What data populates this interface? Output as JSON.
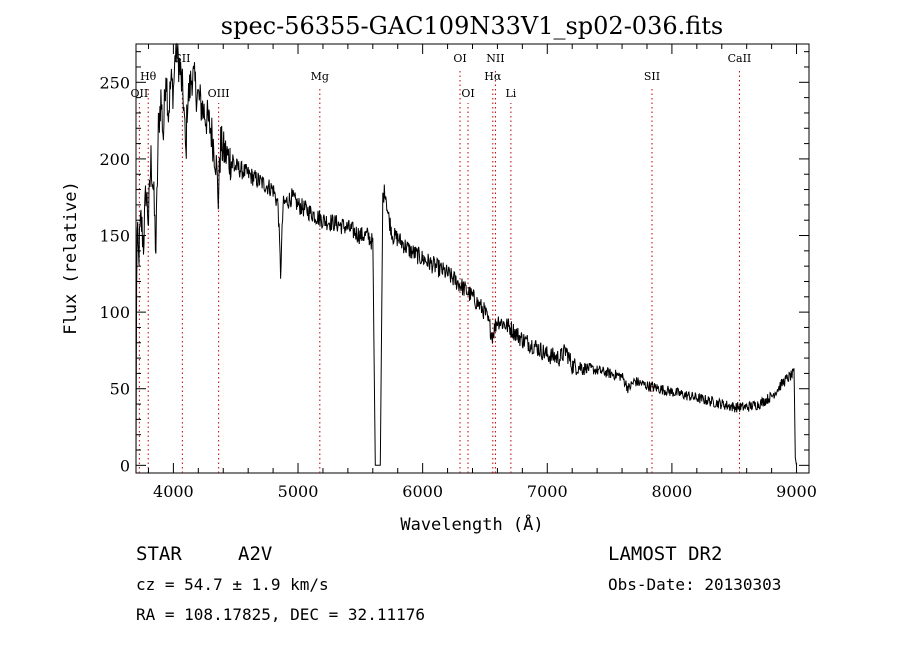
{
  "chart_data": {
    "type": "line",
    "title": "spec-56355-GAC109N33V1_sp02-036.fits",
    "xlabel": "Wavelength (Å)",
    "ylabel": "Flux (relative)",
    "xlim": [
      3700,
      9100
    ],
    "ylim": [
      -5,
      275
    ],
    "x_ticks": [
      4000,
      5000,
      6000,
      7000,
      8000,
      9000
    ],
    "y_ticks": [
      0,
      50,
      100,
      150,
      200,
      250
    ],
    "grid": false,
    "spectrum_anchors": [
      [
        3700,
        0
      ],
      [
        3705,
        120
      ],
      [
        3710,
        150
      ],
      [
        3720,
        135
      ],
      [
        3740,
        160
      ],
      [
        3760,
        145
      ],
      [
        3780,
        180
      ],
      [
        3800,
        160
      ],
      [
        3820,
        200
      ],
      [
        3840,
        180
      ],
      [
        3860,
        140
      ],
      [
        3880,
        220
      ],
      [
        3900,
        240
      ],
      [
        3920,
        215
      ],
      [
        3940,
        260
      ],
      [
        3960,
        230
      ],
      [
        3980,
        250
      ],
      [
        4000,
        245
      ],
      [
        4020,
        275
      ],
      [
        4050,
        260
      ],
      [
        4080,
        240
      ],
      [
        4100,
        200
      ],
      [
        4110,
        235
      ],
      [
        4150,
        255
      ],
      [
        4200,
        240
      ],
      [
        4250,
        230
      ],
      [
        4300,
        220
      ],
      [
        4340,
        200
      ],
      [
        4360,
        175
      ],
      [
        4380,
        210
      ],
      [
        4400,
        205
      ],
      [
        4450,
        200
      ],
      [
        4500,
        195
      ],
      [
        4600,
        190
      ],
      [
        4700,
        185
      ],
      [
        4800,
        180
      ],
      [
        4840,
        170
      ],
      [
        4860,
        125
      ],
      [
        4880,
        170
      ],
      [
        4950,
        175
      ],
      [
        5000,
        170
      ],
      [
        5100,
        165
      ],
      [
        5200,
        160
      ],
      [
        5300,
        158
      ],
      [
        5400,
        155
      ],
      [
        5500,
        150
      ],
      [
        5560,
        150
      ],
      [
        5600,
        145
      ],
      [
        5620,
        0
      ],
      [
        5650,
        0
      ],
      [
        5660,
        0
      ],
      [
        5680,
        175
      ],
      [
        5700,
        180
      ],
      [
        5720,
        165
      ],
      [
        5760,
        150
      ],
      [
        5800,
        148
      ],
      [
        5900,
        140
      ],
      [
        6000,
        135
      ],
      [
        6100,
        130
      ],
      [
        6200,
        125
      ],
      [
        6300,
        118
      ],
      [
        6400,
        110
      ],
      [
        6500,
        100
      ],
      [
        6560,
        85
      ],
      [
        6600,
        95
      ],
      [
        6700,
        90
      ],
      [
        6800,
        82
      ],
      [
        6900,
        78
      ],
      [
        7000,
        72
      ],
      [
        7100,
        70
      ],
      [
        7150,
        75
      ],
      [
        7200,
        65
      ],
      [
        7300,
        64
      ],
      [
        7400,
        62
      ],
      [
        7500,
        60
      ],
      [
        7600,
        58
      ],
      [
        7650,
        50
      ],
      [
        7700,
        55
      ],
      [
        7800,
        52
      ],
      [
        7900,
        50
      ],
      [
        8000,
        48
      ],
      [
        8100,
        46
      ],
      [
        8200,
        44
      ],
      [
        8300,
        42
      ],
      [
        8400,
        40
      ],
      [
        8500,
        38
      ],
      [
        8600,
        38
      ],
      [
        8700,
        40
      ],
      [
        8800,
        45
      ],
      [
        8900,
        55
      ],
      [
        8980,
        60
      ],
      [
        8990,
        5
      ],
      [
        9000,
        0
      ]
    ],
    "line_markers": [
      {
        "label": "Hθ",
        "wavelength": 3798,
        "row": 0
      },
      {
        "label": "OII",
        "wavelength": 3727,
        "row": 1
      },
      {
        "label": "SII",
        "wavelength": 4072,
        "row": "top"
      },
      {
        "label": "OIII",
        "wavelength": 4363,
        "row": 1
      },
      {
        "label": "Mg",
        "wavelength": 5175,
        "row": 0
      },
      {
        "label": "OI",
        "wavelength": 6300,
        "row": "top"
      },
      {
        "label": "OI",
        "wavelength": 6364,
        "row": 1
      },
      {
        "label": "NII",
        "wavelength": 6584,
        "row": "top"
      },
      {
        "label": "Hα",
        "wavelength": 6563,
        "row": 0
      },
      {
        "label": "Li",
        "wavelength": 6708,
        "row": 1
      },
      {
        "label": "SII",
        "wavelength": 7840,
        "row": 0
      },
      {
        "label": "CaII",
        "wavelength": 8542,
        "row": "top"
      }
    ],
    "marker_line_color": "#c00000"
  },
  "info": {
    "class": "STAR",
    "subclass": "A2V",
    "release": "LAMOST DR2",
    "cz": "cz = 54.7 ± 1.9 km/s",
    "obs_date": "Obs-Date: 20130303",
    "coords": "RA = 108.17825, DEC =  32.11176"
  }
}
